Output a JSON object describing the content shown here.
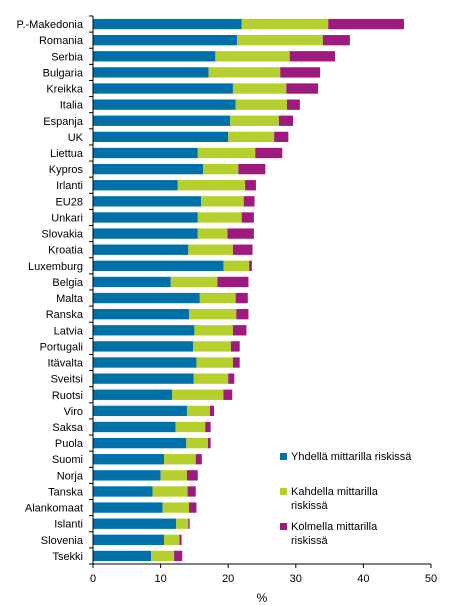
{
  "chart_data": {
    "type": "bar",
    "orientation": "horizontal",
    "stacked": true,
    "title": "",
    "xlabel": "%",
    "ylabel": "",
    "xlim": [
      0,
      50
    ],
    "xticks": [
      0,
      10,
      20,
      30,
      40,
      50
    ],
    "grid": false,
    "legend_position": "right",
    "categories": [
      "P.-Makedonia",
      "Romania",
      "Serbia",
      "Bulgaria",
      "Kreikka",
      "Italia",
      "Espanja",
      "UK",
      "Liettua",
      "Kypros",
      "Irlanti",
      "EU28",
      "Unkari",
      "Slovakia",
      "Kroatia",
      "Luxemburg",
      "Belgia",
      "Malta",
      "Ranska",
      "Latvia",
      "Portugali",
      "Itävalta",
      "Sveitsi",
      "Ruotsi",
      "Viro",
      "Saksa",
      "Puola",
      "Suomi",
      "Norja",
      "Tanska",
      "Alankomaat",
      "Islanti",
      "Slovenia",
      "Tsekki"
    ],
    "series": [
      {
        "name": "Yhdellä mittarilla riskissä",
        "color": "#0070a8",
        "values": [
          22.0,
          21.3,
          18.1,
          17.1,
          20.7,
          21.1,
          20.3,
          20.0,
          15.5,
          16.3,
          12.5,
          16.0,
          15.5,
          15.5,
          14.1,
          19.3,
          11.5,
          15.8,
          14.2,
          15.0,
          14.8,
          15.3,
          14.9,
          11.7,
          13.9,
          12.2,
          13.8,
          10.5,
          10.0,
          8.8,
          10.3,
          12.3,
          10.5,
          8.6
        ]
      },
      {
        "name": "Kahdella mittarilla riskissä",
        "color": "#b5cf2c",
        "values": [
          12.8,
          12.7,
          11.0,
          10.6,
          7.9,
          7.6,
          7.2,
          6.8,
          8.5,
          5.2,
          10.0,
          6.3,
          6.5,
          4.4,
          6.6,
          3.8,
          6.9,
          5.3,
          7.0,
          5.7,
          5.6,
          5.4,
          5.1,
          7.6,
          3.4,
          4.4,
          3.2,
          4.7,
          3.9,
          5.2,
          3.9,
          1.8,
          2.3,
          3.4
        ]
      },
      {
        "name": "Kolmella mittarilla riskissä",
        "color": "#9e1a7f",
        "values": [
          11.2,
          4.0,
          6.7,
          5.9,
          4.7,
          1.9,
          2.1,
          2.1,
          4.0,
          4.0,
          1.6,
          1.6,
          1.8,
          3.9,
          2.9,
          0.4,
          4.6,
          1.8,
          1.8,
          2.0,
          1.3,
          1.0,
          0.9,
          1.3,
          0.6,
          0.8,
          0.4,
          0.9,
          1.6,
          1.2,
          1.1,
          0.2,
          0.3,
          1.2
        ]
      }
    ]
  }
}
